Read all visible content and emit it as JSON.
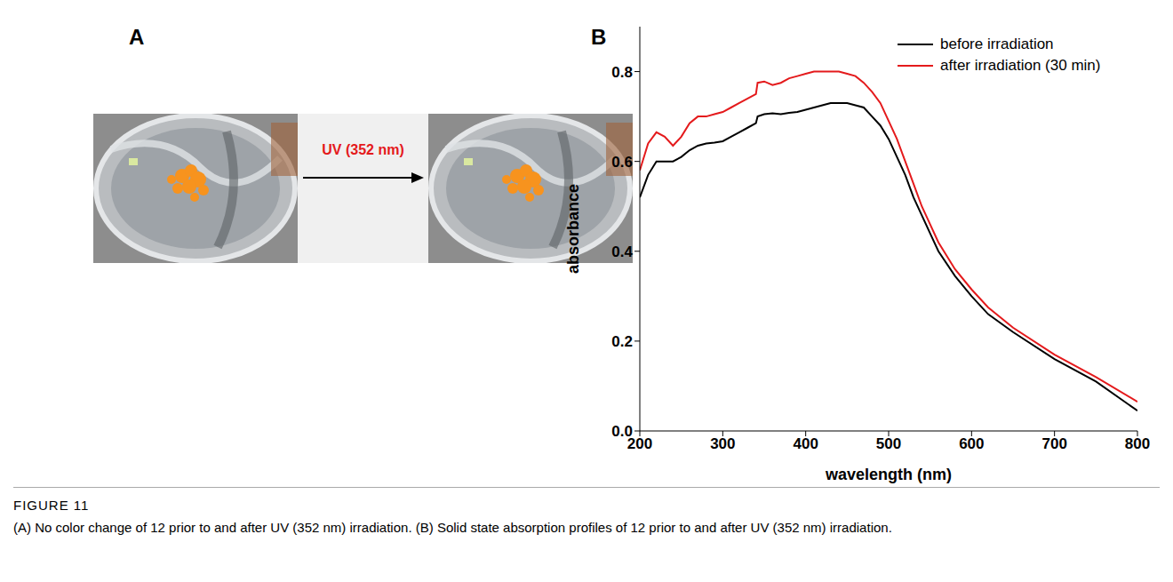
{
  "panel_a": {
    "letter": "A",
    "arrow_label": "UV (352 nm)"
  },
  "panel_b": {
    "letter": "B"
  },
  "chart_data": {
    "type": "line",
    "x_label": "wavelength (nm)",
    "y_label": "absorbance",
    "x": [
      200,
      210,
      220,
      230,
      240,
      250,
      260,
      270,
      280,
      290,
      300,
      310,
      320,
      330,
      340,
      342,
      350,
      360,
      370,
      380,
      390,
      400,
      410,
      420,
      430,
      440,
      450,
      460,
      470,
      480,
      490,
      500,
      510,
      520,
      530,
      540,
      550,
      560,
      580,
      600,
      620,
      650,
      700,
      750,
      800
    ],
    "series": [
      {
        "name": "before irradiation",
        "color": "#000000",
        "values": [
          0.52,
          0.57,
          0.6,
          0.6,
          0.6,
          0.61,
          0.625,
          0.635,
          0.64,
          0.642,
          0.645,
          0.655,
          0.665,
          0.675,
          0.685,
          0.7,
          0.705,
          0.707,
          0.705,
          0.708,
          0.71,
          0.715,
          0.72,
          0.725,
          0.73,
          0.73,
          0.73,
          0.725,
          0.72,
          0.7,
          0.68,
          0.65,
          0.61,
          0.57,
          0.52,
          0.48,
          0.44,
          0.4,
          0.345,
          0.3,
          0.26,
          0.22,
          0.16,
          0.11,
          0.045
        ]
      },
      {
        "name": "after irradiation (30 min)",
        "color": "#e41a1c",
        "values": [
          0.58,
          0.64,
          0.665,
          0.655,
          0.635,
          0.655,
          0.685,
          0.7,
          0.7,
          0.705,
          0.71,
          0.72,
          0.73,
          0.74,
          0.75,
          0.775,
          0.778,
          0.77,
          0.775,
          0.785,
          0.79,
          0.795,
          0.8,
          0.8,
          0.8,
          0.8,
          0.795,
          0.79,
          0.775,
          0.755,
          0.73,
          0.69,
          0.65,
          0.6,
          0.55,
          0.5,
          0.46,
          0.42,
          0.36,
          0.315,
          0.275,
          0.23,
          0.17,
          0.12,
          0.065
        ]
      }
    ],
    "xlim": [
      200,
      800
    ],
    "xticks": [
      200,
      300,
      400,
      500,
      600,
      700,
      800
    ],
    "ylim": [
      0,
      0.9
    ],
    "yticks": [
      {
        "value": 0,
        "label": "0.0"
      },
      0.2,
      0.4,
      0.6,
      0.8
    ],
    "legend": "top-right",
    "grid": false
  },
  "caption": {
    "label": "FIGURE 11",
    "text": "(A) No color change of 12 prior to and after UV (352 nm) irradiation. (B) Solid state absorption profiles of 12 prior to and after UV (352 nm) irradiation."
  }
}
